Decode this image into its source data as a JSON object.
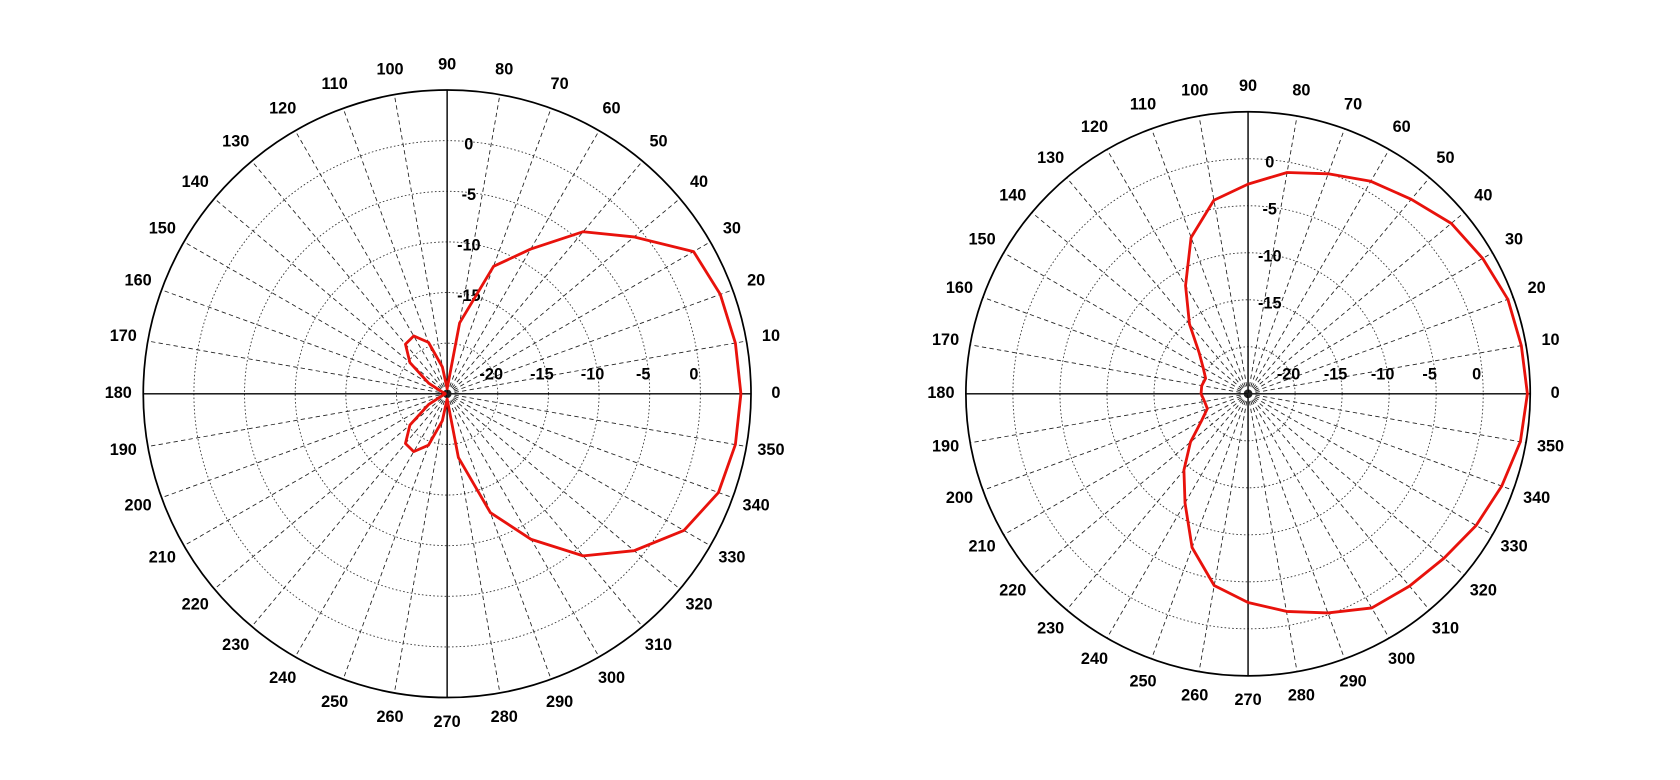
{
  "chart_data": [
    {
      "type": "polar",
      "thetaticks": [
        0,
        10,
        20,
        30,
        40,
        50,
        60,
        70,
        80,
        90,
        100,
        110,
        120,
        130,
        140,
        150,
        160,
        170,
        180,
        190,
        200,
        210,
        220,
        230,
        240,
        250,
        260,
        270,
        280,
        290,
        300,
        310,
        320,
        330,
        340,
        350
      ],
      "rlim": [
        -25,
        5
      ],
      "rticks": [
        -20,
        -15,
        -10,
        -5,
        0
      ],
      "theta": [
        0,
        10,
        20,
        30,
        40,
        50,
        60,
        70,
        80,
        90,
        100,
        110,
        120,
        130,
        140,
        150,
        160,
        170,
        180,
        190,
        200,
        210,
        220,
        230,
        240,
        250,
        260,
        270,
        280,
        290,
        300,
        310,
        320,
        330,
        340,
        350
      ],
      "color": "#e8120c",
      "values": [
        4.0,
        3.9,
        3.7,
        3.1,
        -0.9,
        -4.1,
        -8.5,
        -11.6,
        -17.9,
        -24.5,
        -22.3,
        -19.6,
        -18.4,
        -18.6,
        -20.2,
        -22.9,
        -24.5,
        -24.8,
        -24.8,
        -24.8,
        -24.5,
        -22.9,
        -20.2,
        -18.6,
        -18.4,
        -19.6,
        -22.3,
        -24.5,
        -18.6,
        -12.5,
        -8.4,
        -4.1,
        -0.9,
        2.0,
        3.5,
        3.9
      ]
    },
    {
      "type": "polar",
      "thetaticks": [
        0,
        10,
        20,
        30,
        40,
        50,
        60,
        70,
        80,
        90,
        100,
        110,
        120,
        130,
        140,
        150,
        160,
        170,
        180,
        190,
        200,
        210,
        220,
        230,
        240,
        250,
        260,
        270,
        280,
        290,
        300,
        310,
        320,
        330,
        340,
        350
      ],
      "rlim": [
        -25,
        5
      ],
      "rticks": [
        -20,
        -15,
        -10,
        -5,
        0
      ],
      "theta": [
        0,
        10,
        20,
        30,
        40,
        50,
        60,
        70,
        80,
        90,
        100,
        110,
        120,
        130,
        140,
        150,
        160,
        170,
        180,
        190,
        200,
        210,
        220,
        230,
        240,
        250,
        260,
        270,
        280,
        290,
        300,
        310,
        320,
        330,
        340,
        350
      ],
      "color": "#e8120c",
      "values": [
        4.7,
        4.5,
        4.4,
        3.8,
        3.2,
        2.0,
        1.1,
        -0.1,
        -1.1,
        -2.7,
        -4.1,
        -7.3,
        -11.7,
        -15.3,
        -18.2,
        -19.5,
        -20.2,
        -20.0,
        -20.0,
        -20.3,
        -20.4,
        -19.3,
        -17.0,
        -14.4,
        -11.6,
        -7.6,
        -4.3,
        -2.8,
        -1.5,
        -0.2,
        1.3,
        1.7,
        2.2,
        3.0,
        3.7,
        4.4
      ]
    }
  ]
}
